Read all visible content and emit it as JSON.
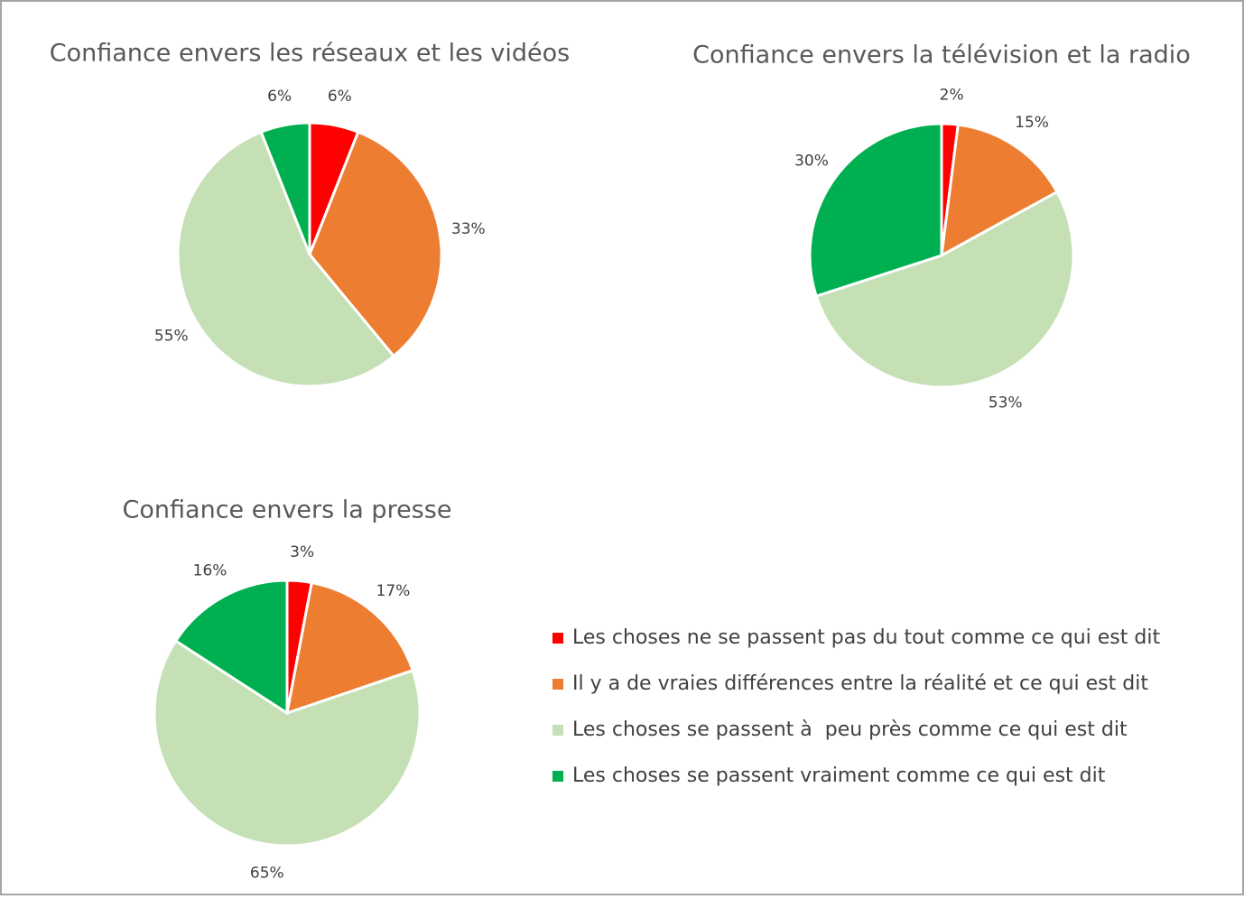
{
  "chart_data": [
    {
      "type": "pie",
      "title": "Confiance envers les réseaux et les vidéos",
      "values": [
        6,
        33,
        55,
        6
      ],
      "value_labels": [
        "6%",
        "33%",
        "55%",
        "6%"
      ]
    },
    {
      "type": "pie",
      "title": "Confiance envers la télévision et la radio",
      "values": [
        2,
        15,
        53,
        30
      ],
      "value_labels": [
        "2%",
        "15%",
        "53%",
        "30%"
      ]
    },
    {
      "type": "pie",
      "title": "Confiance envers la presse",
      "values": [
        3,
        17,
        65,
        16
      ],
      "value_labels": [
        "3%",
        "17%",
        "65%",
        "16%"
      ]
    }
  ],
  "legend": {
    "categories": [
      "Les choses ne se passent pas du tout comme ce qui est dit",
      "Il y a de vraies différences entre la réalité et ce qui est dit",
      "Les choses se passent à  peu près comme ce qui est dit",
      "Les choses se passent vraiment comme ce qui est dit"
    ],
    "colors": [
      "#ff0000",
      "#ed7d31",
      "#c5e0b4",
      "#00b050"
    ]
  }
}
